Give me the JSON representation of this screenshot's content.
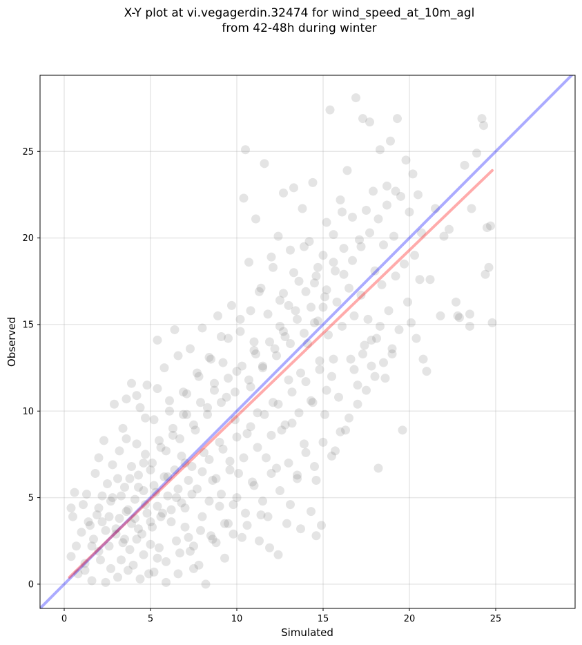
{
  "title_line1": "X-Y plot at vi.vegagerdin.32474 for wind_speed_at_10m_agl",
  "title_line2": "from 42-48h during winter",
  "chart_data": {
    "type": "scatter",
    "xlabel": "Simulated",
    "ylabel": "Observed",
    "xlim": [
      -1.4,
      29.6
    ],
    "ylim": [
      -1.4,
      29.4
    ],
    "xticks": [
      0,
      5,
      10,
      15,
      20,
      25
    ],
    "yticks": [
      0,
      5,
      10,
      15,
      20,
      25
    ],
    "grid": true,
    "point_color": "#555555",
    "identity_line": {
      "color": "#0000ff",
      "x": [
        -1.4,
        29.6
      ],
      "y": [
        -1.4,
        29.6
      ]
    },
    "fit_line": {
      "color": "#ff0000",
      "x": [
        0.3,
        24.8
      ],
      "y": [
        0.4,
        23.9
      ]
    },
    "points": [
      [
        0.4,
        4.4
      ],
      [
        0.5,
        3.9
      ],
      [
        0.6,
        5.3
      ],
      [
        0.4,
        1.6
      ],
      [
        0.7,
        2.2
      ],
      [
        0.8,
        0.6
      ],
      [
        1.0,
        3.0
      ],
      [
        1.1,
        4.6
      ],
      [
        1.2,
        1.2
      ],
      [
        1.3,
        5.2
      ],
      [
        1.5,
        3.4
      ],
      [
        1.6,
        0.2
      ],
      [
        1.7,
        2.6
      ],
      [
        1.8,
        6.4
      ],
      [
        1.9,
        4.0
      ],
      [
        2.0,
        7.3
      ],
      [
        2.1,
        1.4
      ],
      [
        2.2,
        3.6
      ],
      [
        2.3,
        8.3
      ],
      [
        2.4,
        0.1
      ],
      [
        2.5,
        5.8
      ],
      [
        2.6,
        2.2
      ],
      [
        2.7,
        4.8
      ],
      [
        2.8,
        6.9
      ],
      [
        2.9,
        10.4
      ],
      [
        3.0,
        3.2
      ],
      [
        3.1,
        0.4
      ],
      [
        3.2,
        7.7
      ],
      [
        3.3,
        5.1
      ],
      [
        3.4,
        9.0
      ],
      [
        3.5,
        2.6
      ],
      [
        3.6,
        10.7
      ],
      [
        3.7,
        4.3
      ],
      [
        3.8,
        6.1
      ],
      [
        3.9,
        11.6
      ],
      [
        4.0,
        1.1
      ],
      [
        4.1,
        3.8
      ],
      [
        4.2,
        8.1
      ],
      [
        4.3,
        5.6
      ],
      [
        4.4,
        10.2
      ],
      [
        4.5,
        2.9
      ],
      [
        4.6,
        7.0
      ],
      [
        4.7,
        4.6
      ],
      [
        4.8,
        11.5
      ],
      [
        4.9,
        0.6
      ],
      [
        5.0,
        6.6
      ],
      [
        5.1,
        3.3
      ],
      [
        5.2,
        9.5
      ],
      [
        5.3,
        5.3
      ],
      [
        5.4,
        14.1
      ],
      [
        5.5,
        2.1
      ],
      [
        5.6,
        7.9
      ],
      [
        5.7,
        4.1
      ],
      [
        5.8,
        12.5
      ],
      [
        5.9,
        0.1
      ],
      [
        6.0,
        6.2
      ],
      [
        6.1,
        10.6
      ],
      [
        6.2,
        3.6
      ],
      [
        6.3,
        8.6
      ],
      [
        6.4,
        14.7
      ],
      [
        6.5,
        5.0
      ],
      [
        6.6,
        13.2
      ],
      [
        6.7,
        1.8
      ],
      [
        6.8,
        7.4
      ],
      [
        6.9,
        9.8
      ],
      [
        7.0,
        4.4
      ],
      [
        7.1,
        11.0
      ],
      [
        7.2,
        2.7
      ],
      [
        7.3,
        13.6
      ],
      [
        7.4,
        6.8
      ],
      [
        7.5,
        0.9
      ],
      [
        7.6,
        8.9
      ],
      [
        7.7,
        5.5
      ],
      [
        7.8,
        12.0
      ],
      [
        7.9,
        3.1
      ],
      [
        8.0,
        14.8
      ],
      [
        8.1,
        7.6
      ],
      [
        8.2,
        0.0
      ],
      [
        8.3,
        10.2
      ],
      [
        8.4,
        4.8
      ],
      [
        8.5,
        13.0
      ],
      [
        8.6,
        6.0
      ],
      [
        8.7,
        11.6
      ],
      [
        8.8,
        2.4
      ],
      [
        8.9,
        15.5
      ],
      [
        9.0,
        8.2
      ],
      [
        9.1,
        5.2
      ],
      [
        9.2,
        12.8
      ],
      [
        9.3,
        3.5
      ],
      [
        9.4,
        10.8
      ],
      [
        9.5,
        14.2
      ],
      [
        9.6,
        7.1
      ],
      [
        9.7,
        16.1
      ],
      [
        9.8,
        4.6
      ],
      [
        9.9,
        9.5
      ],
      [
        10.0,
        12.3
      ],
      [
        10.1,
        6.4
      ],
      [
        10.2,
        15.3
      ],
      [
        10.3,
        2.7
      ],
      [
        10.4,
        22.3
      ],
      [
        10.5,
        25.1
      ],
      [
        10.6,
        8.7
      ],
      [
        10.7,
        18.6
      ],
      [
        10.8,
        11.4
      ],
      [
        10.9,
        5.9
      ],
      [
        11.0,
        14.0
      ],
      [
        11.1,
        21.1
      ],
      [
        11.2,
        9.9
      ],
      [
        11.3,
        16.9
      ],
      [
        11.4,
        4.0
      ],
      [
        11.5,
        12.6
      ],
      [
        11.6,
        24.3
      ],
      [
        11.7,
        7.3
      ],
      [
        11.8,
        15.6
      ],
      [
        11.9,
        2.1
      ],
      [
        12.0,
        18.9
      ],
      [
        12.1,
        10.5
      ],
      [
        12.2,
        13.6
      ],
      [
        12.3,
        6.7
      ],
      [
        12.4,
        20.1
      ],
      [
        12.5,
        16.4
      ],
      [
        12.6,
        8.9
      ],
      [
        12.7,
        22.6
      ],
      [
        12.8,
        14.3
      ],
      [
        12.9,
        3.5
      ],
      [
        13.0,
        11.8
      ],
      [
        13.1,
        19.3
      ],
      [
        13.2,
        9.3
      ],
      [
        13.3,
        22.9
      ],
      [
        13.4,
        15.8
      ],
      [
        13.5,
        6.3
      ],
      [
        13.6,
        17.5
      ],
      [
        13.7,
        12.2
      ],
      [
        13.8,
        21.7
      ],
      [
        13.9,
        8.1
      ],
      [
        14.0,
        16.9
      ],
      [
        14.1,
        13.9
      ],
      [
        14.2,
        19.8
      ],
      [
        14.3,
        10.6
      ],
      [
        14.4,
        23.2
      ],
      [
        14.5,
        15.1
      ],
      [
        14.6,
        6.0
      ],
      [
        14.7,
        18.3
      ],
      [
        14.8,
        12.9
      ],
      [
        14.9,
        3.4
      ],
      [
        15.0,
        16.0
      ],
      [
        15.1,
        9.8
      ],
      [
        15.2,
        20.9
      ],
      [
        15.3,
        14.4
      ],
      [
        15.4,
        27.4
      ],
      [
        15.5,
        12.0
      ],
      [
        15.6,
        18.6
      ],
      [
        15.7,
        7.7
      ],
      [
        15.8,
        16.3
      ],
      [
        15.9,
        10.8
      ],
      [
        16.0,
        22.2
      ],
      [
        16.1,
        14.9
      ],
      [
        16.2,
        19.4
      ],
      [
        16.3,
        8.9
      ],
      [
        16.4,
        23.9
      ],
      [
        16.5,
        17.1
      ],
      [
        16.6,
        13.0
      ],
      [
        16.7,
        21.2
      ],
      [
        16.8,
        15.5
      ],
      [
        16.9,
        28.1
      ],
      [
        17.0,
        11.5
      ],
      [
        17.1,
        19.9
      ],
      [
        17.2,
        16.7
      ],
      [
        17.3,
        26.9
      ],
      [
        17.4,
        13.8
      ],
      [
        17.5,
        21.6
      ],
      [
        17.6,
        15.3
      ],
      [
        17.7,
        26.7
      ],
      [
        17.8,
        12.6
      ],
      [
        17.9,
        22.7
      ],
      [
        18.0,
        18.1
      ],
      [
        18.1,
        14.2
      ],
      [
        18.2,
        6.7
      ],
      [
        18.3,
        25.1
      ],
      [
        18.4,
        17.3
      ],
      [
        18.5,
        19.6
      ],
      [
        18.6,
        11.9
      ],
      [
        18.7,
        23.0
      ],
      [
        18.8,
        15.8
      ],
      [
        18.9,
        25.6
      ],
      [
        19.0,
        13.3
      ],
      [
        19.1,
        20.1
      ],
      [
        19.2,
        17.8
      ],
      [
        19.3,
        26.9
      ],
      [
        19.4,
        14.7
      ],
      [
        19.5,
        22.4
      ],
      [
        19.6,
        8.9
      ],
      [
        19.7,
        18.5
      ],
      [
        19.8,
        24.5
      ],
      [
        19.9,
        16.3
      ],
      [
        20.0,
        21.5
      ],
      [
        20.1,
        15.1
      ],
      [
        20.2,
        23.7
      ],
      [
        20.3,
        19.0
      ],
      [
        20.4,
        14.2
      ],
      [
        20.5,
        22.5
      ],
      [
        20.6,
        17.6
      ],
      [
        20.7,
        20.3
      ],
      [
        20.8,
        13.0
      ],
      [
        21.0,
        12.3
      ],
      [
        21.2,
        17.6
      ],
      [
        21.5,
        21.7
      ],
      [
        21.8,
        15.5
      ],
      [
        22.0,
        20.1
      ],
      [
        22.3,
        20.5
      ],
      [
        22.7,
        16.3
      ],
      [
        22.9,
        15.4
      ],
      [
        23.2,
        24.2
      ],
      [
        23.5,
        15.6
      ],
      [
        23.6,
        21.7
      ],
      [
        23.9,
        24.9
      ],
      [
        24.2,
        26.9
      ],
      [
        24.3,
        26.5
      ],
      [
        24.4,
        17.9
      ],
      [
        24.5,
        20.6
      ],
      [
        24.6,
        18.3
      ],
      [
        24.7,
        20.7
      ],
      [
        24.8,
        15.1
      ],
      [
        23.5,
        14.9
      ],
      [
        22.8,
        15.5
      ],
      [
        3.2,
        3.8
      ],
      [
        3.6,
        4.2
      ],
      [
        3.9,
        3.5
      ],
      [
        4.1,
        4.9
      ],
      [
        4.3,
        3.2
      ],
      [
        4.6,
        5.4
      ],
      [
        4.8,
        4.1
      ],
      [
        5.0,
        3.6
      ],
      [
        5.2,
        5.7
      ],
      [
        5.4,
        4.5
      ],
      [
        5.6,
        3.9
      ],
      [
        5.8,
        6.2
      ],
      [
        6.0,
        5.1
      ],
      [
        6.2,
        4.3
      ],
      [
        6.4,
        6.6
      ],
      [
        6.6,
        5.5
      ],
      [
        6.8,
        4.7
      ],
      [
        7.0,
        7.0
      ],
      [
        7.2,
        6.0
      ],
      [
        7.4,
        5.2
      ],
      [
        3.0,
        2.9
      ],
      [
        3.4,
        2.4
      ],
      [
        3.8,
        2.0
      ],
      [
        4.2,
        2.6
      ],
      [
        4.6,
        1.7
      ],
      [
        5.0,
        2.3
      ],
      [
        5.4,
        1.5
      ],
      [
        2.6,
        3.9
      ],
      [
        2.8,
        5.0
      ],
      [
        3.1,
        6.1
      ],
      [
        3.5,
        5.6
      ],
      [
        3.9,
        6.8
      ],
      [
        4.3,
        6.3
      ],
      [
        4.7,
        7.5
      ],
      [
        5.1,
        7.0
      ],
      [
        5.5,
        8.3
      ],
      [
        5.9,
        7.7
      ],
      [
        6.3,
        9.0
      ],
      [
        6.7,
        8.4
      ],
      [
        7.1,
        9.8
      ],
      [
        7.5,
        9.2
      ],
      [
        7.9,
        10.5
      ],
      [
        8.3,
        9.8
      ],
      [
        8.7,
        11.2
      ],
      [
        9.1,
        10.5
      ],
      [
        9.5,
        11.9
      ],
      [
        9.9,
        11.1
      ],
      [
        10.3,
        12.6
      ],
      [
        10.7,
        11.8
      ],
      [
        11.1,
        13.3
      ],
      [
        11.5,
        12.5
      ],
      [
        11.9,
        14.0
      ],
      [
        12.3,
        13.2
      ],
      [
        12.7,
        14.6
      ],
      [
        13.1,
        13.9
      ],
      [
        13.5,
        15.3
      ],
      [
        13.9,
        14.5
      ],
      [
        14.3,
        16.0
      ],
      [
        14.7,
        15.2
      ],
      [
        15.1,
        16.6
      ],
      [
        8.0,
        6.5
      ],
      [
        8.4,
        7.2
      ],
      [
        8.8,
        6.1
      ],
      [
        9.2,
        7.8
      ],
      [
        9.6,
        6.6
      ],
      [
        10.0,
        8.5
      ],
      [
        10.4,
        7.3
      ],
      [
        10.8,
        9.1
      ],
      [
        11.2,
        7.9
      ],
      [
        11.6,
        9.8
      ],
      [
        12.0,
        8.6
      ],
      [
        12.4,
        10.4
      ],
      [
        12.8,
        9.2
      ],
      [
        13.2,
        11.1
      ],
      [
        13.6,
        9.9
      ],
      [
        14.0,
        11.7
      ],
      [
        14.4,
        10.5
      ],
      [
        14.8,
        12.4
      ],
      [
        15.2,
        11.2
      ],
      [
        15.6,
        13.0
      ],
      [
        6.5,
        2.5
      ],
      [
        7.0,
        3.3
      ],
      [
        7.5,
        2.2
      ],
      [
        8.0,
        3.9
      ],
      [
        8.5,
        2.8
      ],
      [
        9.0,
        4.5
      ],
      [
        9.5,
        3.5
      ],
      [
        10.0,
        5.0
      ],
      [
        10.5,
        4.1
      ],
      [
        11.0,
        5.7
      ],
      [
        11.5,
        4.8
      ],
      [
        12.0,
        6.4
      ],
      [
        12.5,
        5.4
      ],
      [
        13.0,
        7.0
      ],
      [
        13.5,
        6.1
      ],
      [
        14.0,
        7.6
      ],
      [
        14.5,
        6.8
      ],
      [
        15.0,
        8.2
      ],
      [
        15.5,
        7.4
      ],
      [
        16.0,
        8.8
      ],
      [
        16.5,
        9.6
      ],
      [
        17.0,
        10.4
      ],
      [
        17.5,
        11.2
      ],
      [
        18.0,
        12.0
      ],
      [
        18.5,
        12.8
      ],
      [
        19.0,
        13.6
      ],
      [
        16.8,
        12.4
      ],
      [
        17.3,
        13.3
      ],
      [
        17.8,
        14.1
      ],
      [
        18.3,
        14.9
      ],
      [
        16.2,
        17.9
      ],
      [
        16.7,
        18.7
      ],
      [
        17.2,
        19.5
      ],
      [
        17.7,
        20.3
      ],
      [
        18.2,
        21.1
      ],
      [
        18.7,
        21.9
      ],
      [
        19.2,
        22.7
      ],
      [
        15.7,
        18.1
      ],
      [
        15.2,
        17.0
      ],
      [
        14.6,
        17.8
      ],
      [
        1.2,
        0.8
      ],
      [
        1.6,
        2.2
      ],
      [
        2.0,
        1.9
      ],
      [
        2.4,
        3.1
      ],
      [
        2.0,
        4.4
      ],
      [
        1.4,
        3.6
      ],
      [
        2.2,
        5.1
      ],
      [
        2.7,
        0.9
      ],
      [
        3.3,
        1.4
      ],
      [
        3.7,
        0.8
      ],
      [
        4.4,
        0.3
      ],
      [
        5.2,
        0.7
      ],
      [
        5.9,
        1.3
      ],
      [
        6.6,
        0.6
      ],
      [
        7.3,
        1.9
      ],
      [
        7.8,
        1.1
      ],
      [
        8.6,
        2.6
      ],
      [
        9.3,
        1.5
      ],
      [
        9.8,
        2.9
      ],
      [
        10.6,
        3.4
      ],
      [
        11.3,
        2.5
      ],
      [
        11.8,
        3.9
      ],
      [
        12.4,
        1.7
      ],
      [
        13.1,
        4.6
      ],
      [
        13.7,
        3.2
      ],
      [
        14.3,
        4.2
      ],
      [
        14.6,
        2.8
      ],
      [
        9.1,
        14.3
      ],
      [
        8.4,
        13.1
      ],
      [
        7.7,
        12.2
      ],
      [
        6.9,
        11.1
      ],
      [
        6.1,
        10.0
      ],
      [
        5.4,
        11.3
      ],
      [
        4.7,
        9.6
      ],
      [
        4.2,
        10.9
      ],
      [
        3.6,
        8.4
      ],
      [
        10.8,
        15.8
      ],
      [
        11.4,
        17.1
      ],
      [
        12.1,
        18.3
      ],
      [
        12.7,
        16.8
      ],
      [
        13.3,
        18.0
      ],
      [
        13.9,
        19.5
      ],
      [
        14.5,
        17.4
      ],
      [
        15.0,
        19.0
      ],
      [
        15.6,
        20.2
      ],
      [
        16.1,
        21.5
      ],
      [
        12.5,
        14.9
      ],
      [
        13.0,
        16.1
      ],
      [
        11.0,
        13.5
      ],
      [
        10.2,
        14.6
      ]
    ]
  }
}
